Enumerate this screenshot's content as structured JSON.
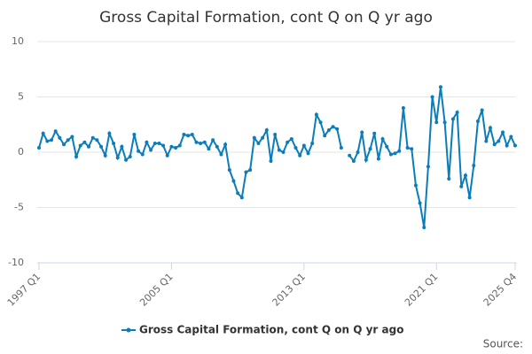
{
  "chart_data": {
    "type": "line",
    "title": "Gross Capital Formation, cont Q on Q yr ago",
    "categories": [
      "1997 Q1",
      null,
      null,
      null,
      null,
      null,
      null,
      null,
      null,
      null,
      null,
      null,
      null,
      null,
      null,
      null,
      null,
      null,
      null,
      null,
      null,
      null,
      null,
      null,
      null,
      null,
      null,
      null,
      null,
      null,
      null,
      null,
      "2005 Q1",
      null,
      null,
      null,
      null,
      null,
      null,
      null,
      null,
      null,
      null,
      null,
      null,
      null,
      null,
      null,
      null,
      null,
      null,
      null,
      null,
      null,
      null,
      null,
      null,
      null,
      null,
      null,
      null,
      null,
      null,
      null,
      "2013 Q1",
      null,
      null,
      null,
      null,
      null,
      null,
      null,
      null,
      null,
      null,
      null,
      null,
      null,
      null,
      null,
      null,
      null,
      null,
      null,
      null,
      null,
      null,
      null,
      null,
      null,
      null,
      null,
      null,
      null,
      null,
      null,
      "2021 Q1",
      null,
      null,
      null,
      null,
      null,
      null,
      null,
      null,
      null,
      null,
      null,
      null,
      null,
      null,
      null,
      null,
      null,
      null,
      "2025 Q4"
    ],
    "series": [
      {
        "name": "Gross Capital Formation, cont Q on Q yr ago",
        "color": "#0a7dba",
        "values": [
          0.4,
          1.7,
          1.0,
          1.1,
          1.9,
          1.3,
          0.7,
          1.1,
          1.4,
          -0.4,
          0.6,
          0.9,
          0.5,
          1.3,
          1.1,
          0.5,
          -0.3,
          1.7,
          0.8,
          -0.5,
          0.5,
          -0.7,
          -0.4,
          1.6,
          0.1,
          -0.2,
          0.9,
          0.2,
          0.8,
          0.8,
          0.6,
          -0.3,
          0.5,
          0.4,
          0.6,
          1.6,
          1.5,
          1.6,
          0.9,
          0.8,
          0.9,
          0.3,
          1.1,
          0.5,
          -0.2,
          0.7,
          -1.6,
          -2.6,
          -3.7,
          -4.1,
          -1.8,
          -1.6,
          1.3,
          0.8,
          1.3,
          2.0,
          -0.8,
          1.6,
          0.2,
          0.0,
          0.9,
          1.2,
          0.4,
          -0.3,
          0.6,
          -0.1,
          0.8,
          3.4,
          2.7,
          1.5,
          2.0,
          2.3,
          2.1,
          0.4,
          null,
          -0.3,
          -0.8,
          0.0,
          1.8,
          -0.7,
          0.3,
          1.7,
          -0.6,
          1.2,
          0.5,
          -0.2,
          -0.1,
          0.1,
          4.0,
          0.4,
          0.3,
          -3.0,
          -4.6,
          -6.8,
          -1.3,
          5.0,
          2.7,
          5.9,
          2.7,
          -2.4,
          3.0,
          3.6,
          -3.1,
          -2.1,
          -4.1,
          -1.2,
          2.8,
          3.8,
          1.0,
          2.2,
          0.7,
          1.0,
          1.8,
          0.6,
          1.4,
          0.6
        ]
      }
    ],
    "ylim": [
      -10,
      10
    ],
    "yticks": [
      -10,
      -5,
      0,
      5,
      10
    ],
    "grid": true,
    "legend": "bottom",
    "source": "Source:"
  }
}
